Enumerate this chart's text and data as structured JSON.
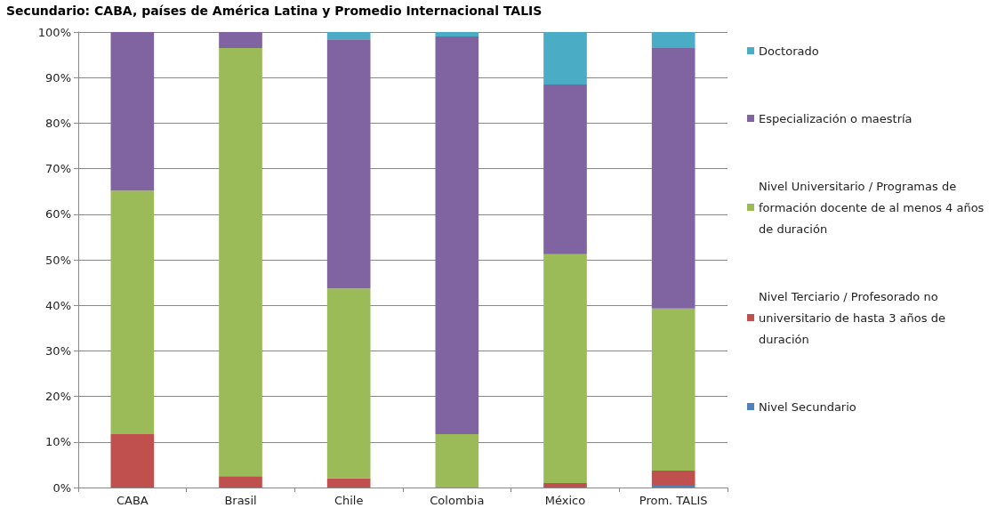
{
  "chart_data": {
    "type": "bar",
    "stacked": true,
    "title": "Secundario: CABA, países de América Latina y Promedio Internacional TALIS",
    "categories": [
      "CABA",
      "Brasil",
      "Chile",
      "Colombia",
      "México",
      "Prom. TALIS"
    ],
    "series": [
      {
        "name": "Nivel Secundario",
        "color": "#4f81bd",
        "values": [
          0,
          0,
          0,
          0,
          0,
          0.4
        ]
      },
      {
        "name": "Nivel Terciario / Profesorado no universitario de hasta 3 años de duración",
        "color": "#c0504d",
        "values": [
          11.7,
          2.5,
          2.0,
          0,
          1.0,
          3.3
        ]
      },
      {
        "name": "Nivel Universitario / Programas de formación docente de al menos 4 años de duración",
        "color": "#9bbb59",
        "values": [
          53.5,
          94.0,
          41.7,
          11.7,
          50.2,
          35.6
        ]
      },
      {
        "name": "Especialización o maestría",
        "color": "#8064a2",
        "values": [
          34.8,
          3.5,
          54.7,
          87.3,
          37.3,
          57.2
        ]
      },
      {
        "name": "Doctorado",
        "color": "#4bacc6",
        "values": [
          0,
          0,
          1.6,
          1.0,
          11.5,
          3.5
        ]
      }
    ],
    "ylim": [
      0,
      100
    ],
    "yticks": [
      {
        "value": 0,
        "label": "0%"
      },
      {
        "value": 10,
        "label": "10%"
      },
      {
        "value": 20,
        "label": "20%"
      },
      {
        "value": 30,
        "label": "30%"
      },
      {
        "value": 40,
        "label": "40%"
      },
      {
        "value": 50,
        "label": "50%"
      },
      {
        "value": 60,
        "label": "60%"
      },
      {
        "value": 70,
        "label": "70%"
      },
      {
        "value": 80,
        "label": "80%"
      },
      {
        "value": 90,
        "label": "90%"
      },
      {
        "value": 100,
        "label": "100%"
      }
    ],
    "grid": "y",
    "legend": "right"
  }
}
